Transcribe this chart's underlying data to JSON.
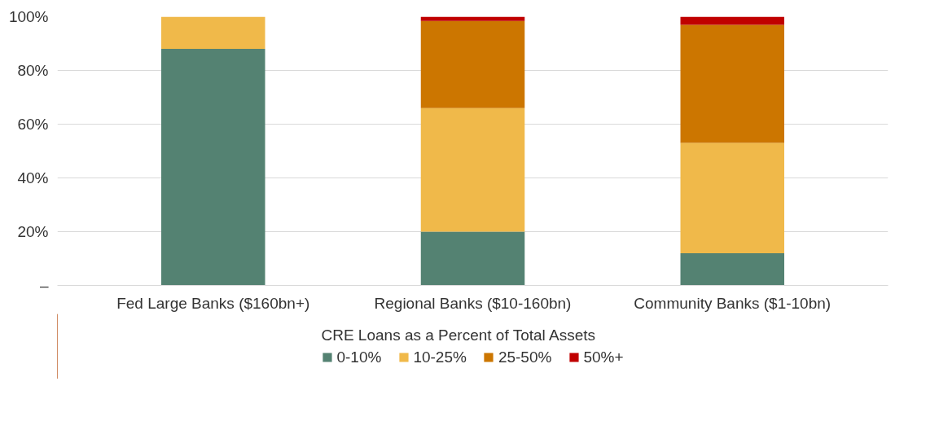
{
  "chart_data": {
    "type": "bar",
    "stacked": true,
    "legend_title": "CRE Loans as a Percent of Total Assets",
    "categories": [
      "Fed Large Banks ($160bn+)",
      "Regional Banks ($10-160bn)",
      "Community Banks ($1-10bn)"
    ],
    "series": [
      {
        "name": "0-10%",
        "color": "#548272",
        "values": [
          88,
          20,
          12
        ]
      },
      {
        "name": "10-25%",
        "color": "#f0b94a",
        "values": [
          12,
          46,
          41
        ]
      },
      {
        "name": "25-50%",
        "color": "#cc7600",
        "values": [
          0,
          32.4,
          44
        ]
      },
      {
        "name": "50%+",
        "color": "#c00000",
        "values": [
          0,
          1.6,
          3
        ]
      }
    ],
    "ylim": [
      0,
      100
    ],
    "yticks": [
      {
        "value": 0,
        "label": "–"
      },
      {
        "value": 20,
        "label": "20%"
      },
      {
        "value": 40,
        "label": "40%"
      },
      {
        "value": 60,
        "label": "60%"
      },
      {
        "value": 80,
        "label": "80%"
      },
      {
        "value": 100,
        "label": "100%"
      }
    ],
    "grid": "y",
    "legend": "bottom"
  }
}
